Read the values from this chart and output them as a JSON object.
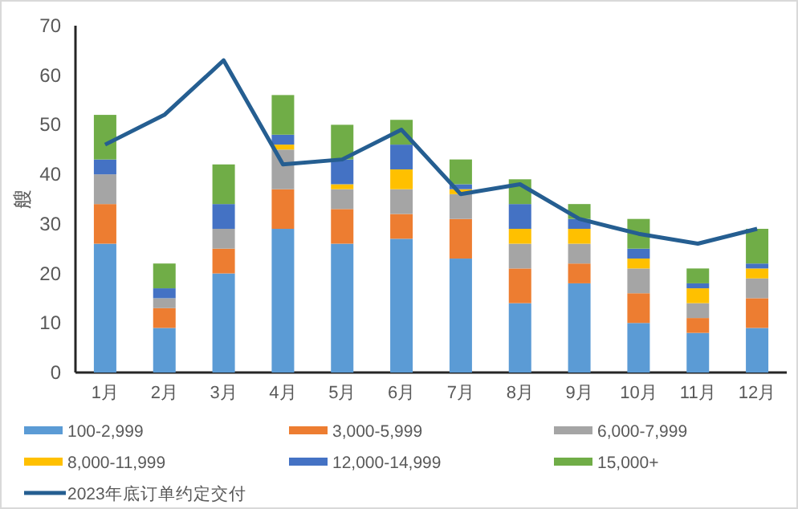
{
  "chart_data": {
    "type": "bar",
    "stacked": true,
    "ylabel": "艘",
    "legend": "bottom",
    "categories": [
      "1月",
      "2月",
      "3月",
      "4月",
      "5月",
      "6月",
      "7月",
      "8月",
      "9月",
      "10月",
      "11月",
      "12月"
    ],
    "ylim": [
      0,
      70
    ],
    "yticks": [
      0,
      10,
      20,
      30,
      40,
      50,
      60,
      70
    ],
    "series": [
      {
        "name": "100-2,999",
        "color": "#5b9bd5",
        "values": [
          26,
          9,
          20,
          29,
          26,
          27,
          23,
          14,
          18,
          10,
          8,
          9
        ]
      },
      {
        "name": "3,000-5,999",
        "color": "#ed7d31",
        "values": [
          8,
          4,
          5,
          8,
          7,
          5,
          8,
          7,
          4,
          6,
          3,
          6
        ]
      },
      {
        "name": "6,000-7,999",
        "color": "#a5a5a5",
        "values": [
          6,
          2,
          4,
          8,
          4,
          5,
          5,
          5,
          4,
          5,
          3,
          4
        ]
      },
      {
        "name": "8,000-11,999",
        "color": "#ffc000",
        "values": [
          0,
          0,
          0,
          1,
          1,
          4,
          1,
          3,
          3,
          2,
          3,
          2
        ]
      },
      {
        "name": "12,000-14,999",
        "color": "#4472c4",
        "values": [
          3,
          2,
          5,
          2,
          5,
          5,
          1,
          5,
          2,
          2,
          1,
          1
        ]
      },
      {
        "name": "15,000+",
        "color": "#70ad47",
        "values": [
          9,
          5,
          8,
          8,
          7,
          5,
          5,
          5,
          3,
          6,
          3,
          7
        ]
      },
      {
        "name": "2023年底订单约定交付",
        "type": "line",
        "color": "#255e91",
        "values": [
          46,
          52,
          63,
          42,
          43,
          49,
          36,
          38,
          31,
          28,
          26,
          29
        ]
      }
    ]
  }
}
